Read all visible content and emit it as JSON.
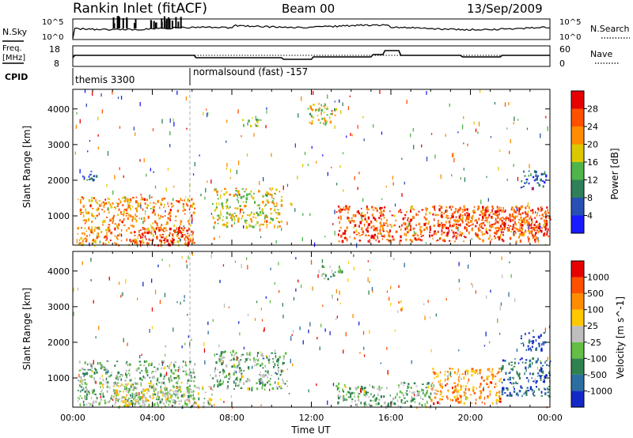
{
  "header": {
    "station": "Rankin Inlet (fitACF)",
    "beam": "Beam 00",
    "date": "13/Sep/2009"
  },
  "strip_top": {
    "left_label": "N.Sky",
    "right_label": "N.Search",
    "left_ticks": [
      "10^5",
      "10^0"
    ],
    "right_ticks": [
      "10^5",
      "10^0"
    ]
  },
  "strip_freq": {
    "left_label_line1": "Freq.",
    "left_label_line2": "[MHz]",
    "right_label": "Nave",
    "left_ticks": [
      "18",
      "8"
    ],
    "right_ticks": [
      "60",
      "0"
    ]
  },
  "cpid": {
    "label": "CPID",
    "modes": [
      {
        "text": "themis 3300",
        "start_hour": 0
      },
      {
        "text": "normalsound (fast) -157",
        "start_hour": 6.1
      }
    ]
  },
  "chart_data": [
    {
      "type": "heatmap",
      "panel": "power",
      "ylabel": "Slant Range [km]",
      "xlabel": "",
      "xlim": [
        0,
        24
      ],
      "ylim": [
        180,
        4550
      ],
      "y_ticks": [
        1000,
        2000,
        3000,
        4000
      ],
      "colorbar": {
        "label": "Power [dB]",
        "ticks": [
          "4",
          "8",
          "12",
          "16",
          "20",
          "24",
          "28"
        ],
        "colors": [
          "#1a1aff",
          "#2850b4",
          "#2f7f5a",
          "#50b44b",
          "#dcc800",
          "#ff8c00",
          "#ff5000",
          "#e60000"
        ]
      },
      "regions": [
        {
          "t0": 0.2,
          "t1": 6.1,
          "r0": 200,
          "r1": 1550,
          "level": 5
        },
        {
          "t0": 3.0,
          "t1": 6.0,
          "r0": 200,
          "r1": 700,
          "level": 7
        },
        {
          "t0": 7.0,
          "t1": 10.5,
          "r0": 700,
          "r1": 1800,
          "level": 4
        },
        {
          "t0": 13.2,
          "t1": 24.0,
          "r0": 300,
          "r1": 1300,
          "level": 6
        },
        {
          "t0": 18.5,
          "t1": 24.0,
          "r0": 500,
          "r1": 1300,
          "level": 6
        },
        {
          "t0": 8.5,
          "t1": 9.5,
          "r0": 3500,
          "r1": 3800,
          "level": 3
        },
        {
          "t0": 11.8,
          "t1": 13.2,
          "r0": 3600,
          "r1": 4200,
          "level": 4
        },
        {
          "t0": 22.5,
          "t1": 23.8,
          "r0": 1800,
          "r1": 2300,
          "level": 1
        },
        {
          "t0": 0.3,
          "t1": 1.2,
          "r0": 2000,
          "r1": 2300,
          "level": 1
        }
      ]
    },
    {
      "type": "heatmap",
      "panel": "velocity",
      "ylabel": "Slant Range [km]",
      "xlabel": "Time UT",
      "xlim": [
        0,
        24
      ],
      "ylim": [
        180,
        4550
      ],
      "y_ticks": [
        1000,
        2000,
        3000,
        4000
      ],
      "x_ticks": [
        "00:00",
        "04:00",
        "08:00",
        "12:00",
        "16:00",
        "20:00",
        "00:00"
      ],
      "colorbar": {
        "label": "Velocity [m s^-1]",
        "ticks": [
          "1000",
          "500",
          "100",
          "25",
          "-25",
          "-100",
          "-500",
          "-1000"
        ],
        "colors": [
          "#1428c8",
          "#2d6ea0",
          "#2f8250",
          "#64be46",
          "#bebebe",
          "#ffc800",
          "#ff8c00",
          "#ff5000",
          "#e60000"
        ]
      },
      "regions": [
        {
          "t0": 0.2,
          "t1": 6.1,
          "r0": 200,
          "r1": 1500,
          "level": 3
        },
        {
          "t0": 2.0,
          "t1": 7.0,
          "r0": 200,
          "r1": 900,
          "level": 4
        },
        {
          "t0": 7.0,
          "t1": 10.8,
          "r0": 700,
          "r1": 1800,
          "level": 3
        },
        {
          "t0": 13.2,
          "t1": 18.0,
          "r0": 200,
          "r1": 900,
          "level": 3
        },
        {
          "t0": 18.0,
          "t1": 21.5,
          "r0": 300,
          "r1": 1300,
          "level": 6
        },
        {
          "t0": 21.5,
          "t1": 24.0,
          "r0": 500,
          "r1": 1600,
          "level": 1
        },
        {
          "t0": 12.5,
          "t1": 13.5,
          "r0": 3800,
          "r1": 4200,
          "level": 3
        },
        {
          "t0": 22.5,
          "t1": 23.8,
          "r0": 1800,
          "r1": 2300,
          "level": 0
        },
        {
          "t0": 16.3,
          "t1": 16.6,
          "r0": 2900,
          "r1": 3200,
          "level": 6
        }
      ]
    }
  ]
}
